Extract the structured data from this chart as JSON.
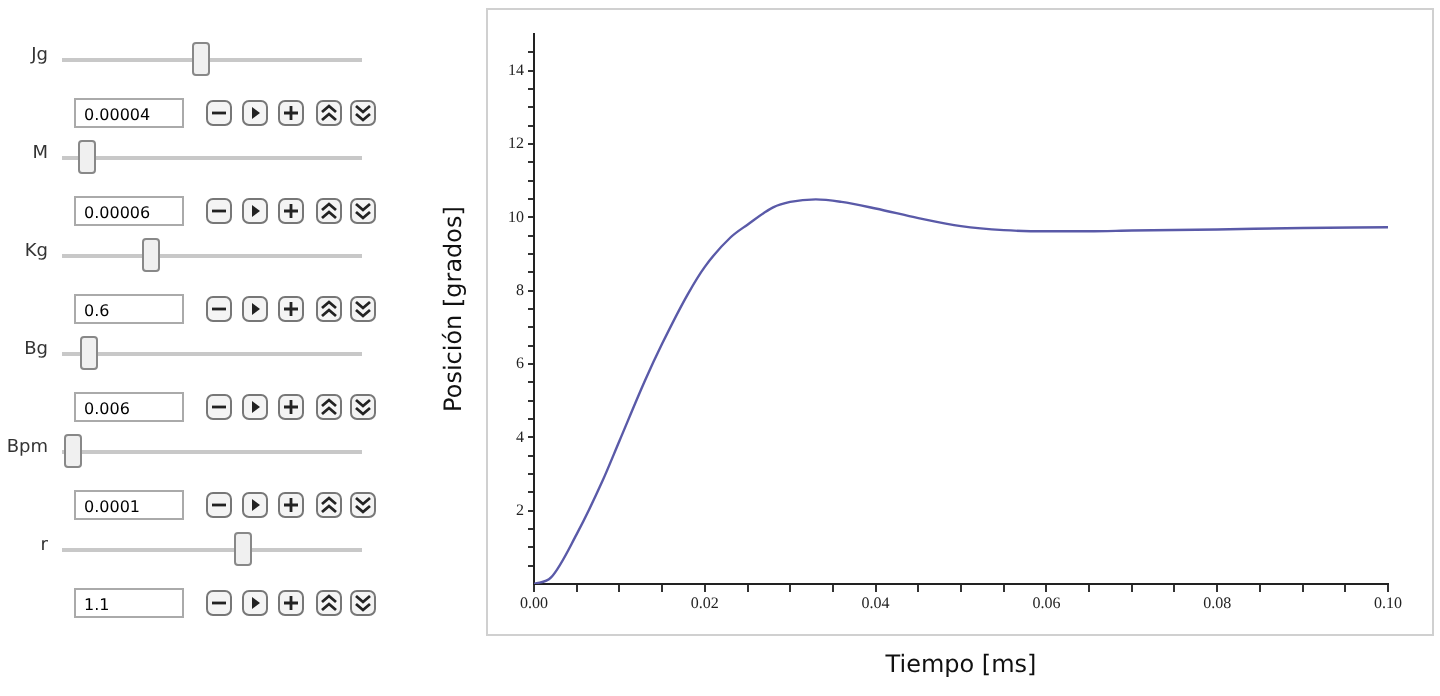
{
  "chart_data": {
    "type": "line",
    "xlabel": "Tiempo [ms]",
    "ylabel": "Posición [grados]",
    "x": [
      0,
      0.002,
      0.005,
      0.008,
      0.01,
      0.013,
      0.015,
      0.018,
      0.02,
      0.023,
      0.025,
      0.028,
      0.03,
      0.033,
      0.036,
      0.04,
      0.045,
      0.05,
      0.055,
      0.06,
      0.065,
      0.07,
      0.08,
      0.09,
      0.1
    ],
    "series": [
      {
        "color": "#5a5aa8",
        "values": [
          0,
          0.18,
          1.36,
          2.8,
          3.9,
          5.55,
          6.55,
          7.9,
          8.65,
          9.45,
          9.8,
          10.27,
          10.42,
          10.49,
          10.42,
          10.24,
          9.98,
          9.76,
          9.65,
          9.62,
          9.62,
          9.64,
          9.67,
          9.71,
          9.73
        ]
      }
    ],
    "xlim": [
      0,
      0.1
    ],
    "xticks": [
      {
        "value": 0,
        "label": "0.00"
      },
      {
        "value": 0.005,
        "label": null
      },
      {
        "value": 0.01,
        "label": null
      },
      {
        "value": 0.015,
        "label": null
      },
      {
        "value": 0.02,
        "label": "0.02"
      },
      {
        "value": 0.025,
        "label": null
      },
      {
        "value": 0.03,
        "label": null
      },
      {
        "value": 0.035,
        "label": null
      },
      {
        "value": 0.04,
        "label": "0.04"
      },
      {
        "value": 0.045,
        "label": null
      },
      {
        "value": 0.05,
        "label": null
      },
      {
        "value": 0.055,
        "label": null
      },
      {
        "value": 0.06,
        "label": "0.06"
      },
      {
        "value": 0.065,
        "label": null
      },
      {
        "value": 0.07,
        "label": null
      },
      {
        "value": 0.075,
        "label": null
      },
      {
        "value": 0.08,
        "label": "0.08"
      },
      {
        "value": 0.085,
        "label": null
      },
      {
        "value": 0.09,
        "label": null
      },
      {
        "value": 0.095,
        "label": null
      },
      {
        "value": 0.1,
        "label": "0.10"
      }
    ],
    "ylim": [
      0,
      15
    ],
    "yticks": [
      {
        "value": 0.5,
        "label": null
      },
      {
        "value": 1,
        "label": null
      },
      {
        "value": 1.5,
        "label": null
      },
      2,
      {
        "value": 2.5,
        "label": null
      },
      {
        "value": 3,
        "label": null
      },
      {
        "value": 3.5,
        "label": null
      },
      4,
      {
        "value": 4.5,
        "label": null
      },
      {
        "value": 5,
        "label": null
      },
      {
        "value": 5.5,
        "label": null
      },
      6,
      {
        "value": 6.5,
        "label": null
      },
      {
        "value": 7,
        "label": null
      },
      {
        "value": 7.5,
        "label": null
      },
      8,
      {
        "value": 8.5,
        "label": null
      },
      {
        "value": 9,
        "label": null
      },
      {
        "value": 9.5,
        "label": null
      },
      10,
      {
        "value": 10.5,
        "label": null
      },
      {
        "value": 11,
        "label": null
      },
      {
        "value": 11.5,
        "label": null
      },
      12,
      {
        "value": 12.5,
        "label": null
      },
      {
        "value": 13,
        "label": null
      },
      {
        "value": 13.5,
        "label": null
      },
      14,
      {
        "value": 14.5,
        "label": null
      }
    ],
    "grid": false,
    "legend": false,
    "marker": "none",
    "line_style": "solid",
    "annotations": [
      "Jg",
      "0.00004",
      "M",
      "0.00006",
      "Kg",
      "0.6",
      "Bg",
      "0.006",
      "Bpm",
      "0.0001",
      "r",
      "1.1"
    ]
  }
}
